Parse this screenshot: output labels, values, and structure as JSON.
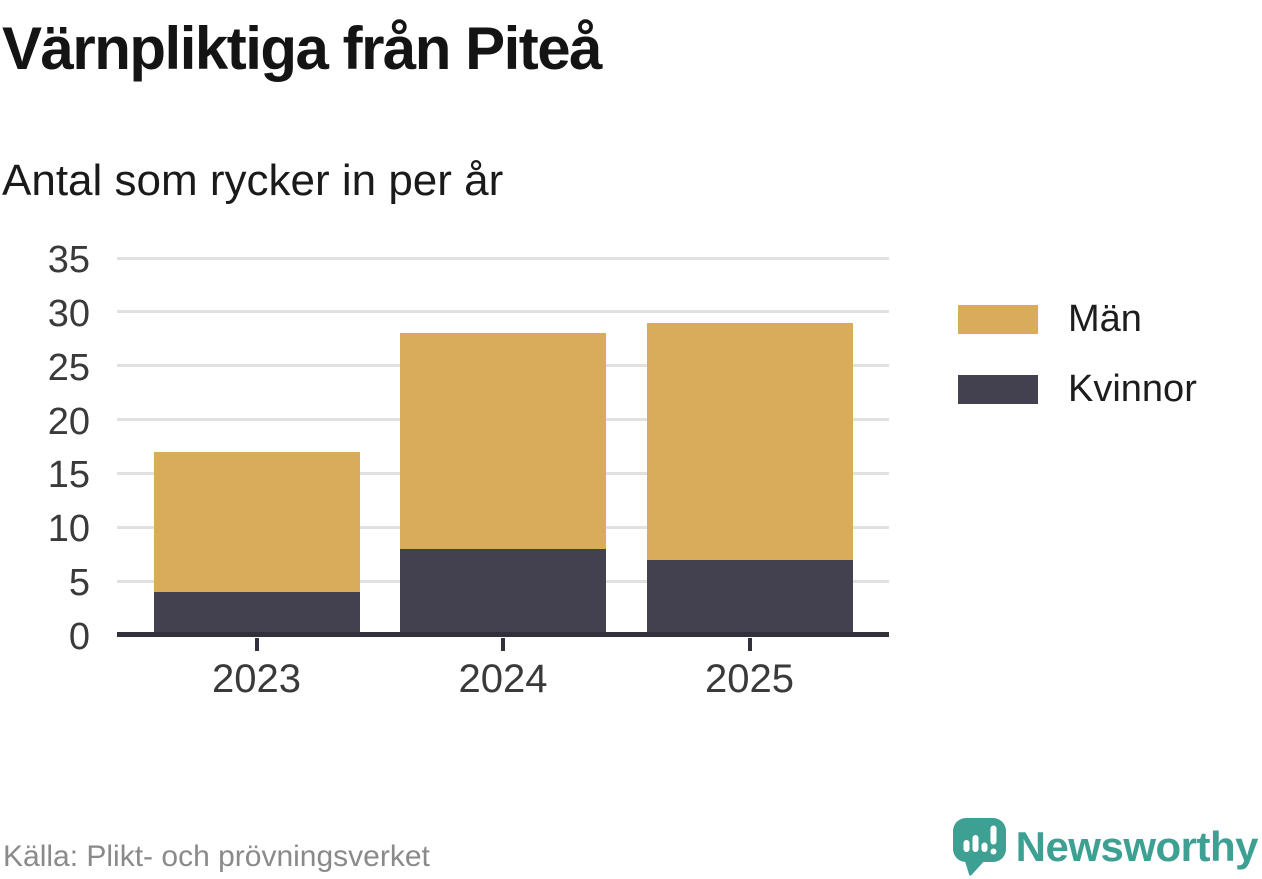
{
  "header": {
    "title": "Värnpliktiga från Piteå",
    "subtitle": "Antal som rycker in per år"
  },
  "footer": {
    "source": "Källa: Plikt- och prövningsverket",
    "brand": "Newsworthy"
  },
  "colors": {
    "men": "#d9ac5c",
    "women": "#434050",
    "axis": "#32303a",
    "grid": "#e1e1e1",
    "brand_teal": "#3da092",
    "title_text": "#141414",
    "tick_text": "#3a3a3a",
    "source_text": "#8a8a8a"
  },
  "legend": [
    {
      "label": "Män",
      "color": "#d9ac5c"
    },
    {
      "label": "Kvinnor",
      "color": "#434050"
    }
  ],
  "chart_data": {
    "type": "bar",
    "stacked": true,
    "title": "Värnpliktiga från Piteå",
    "subtitle": "Antal som rycker in per år",
    "categories": [
      "2023",
      "2024",
      "2025"
    ],
    "series": [
      {
        "name": "Kvinnor",
        "values": [
          4,
          8,
          7
        ],
        "color": "#434050"
      },
      {
        "name": "Män",
        "values": [
          13,
          20,
          22
        ],
        "color": "#d9ac5c"
      }
    ],
    "totals": [
      17,
      28,
      29
    ],
    "xlabel": "",
    "ylabel": "",
    "ylim": [
      0,
      35
    ],
    "yticks": [
      0,
      5,
      10,
      15,
      20,
      25,
      30,
      35
    ],
    "grid": "horizontal",
    "legend_position": "right"
  }
}
